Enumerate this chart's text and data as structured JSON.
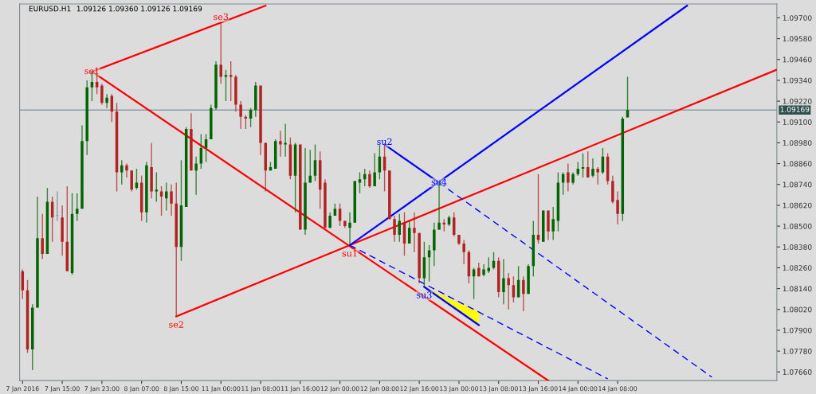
{
  "chart_data": {
    "type": "candlestick",
    "title": "EURUSD.H1",
    "subtitle": "1.09126 1.09360 1.09126 1.09169",
    "categories": [
      "7 Jan 2016",
      null,
      null,
      null,
      null,
      null,
      null,
      null,
      "7 Jan 15:00",
      null,
      null,
      null,
      null,
      null,
      null,
      null,
      "7 Jan 23:00",
      null,
      null,
      null,
      null,
      null,
      null,
      null,
      "8 Jan 07:00",
      null,
      null,
      null,
      null,
      null,
      null,
      null,
      "8 Jan 15:00",
      null,
      null,
      null,
      null,
      null,
      null,
      null,
      "11 Jan 00:00",
      null,
      null,
      null,
      null,
      null,
      null,
      null,
      "11 Jan 08:00",
      null,
      null,
      null,
      null,
      null,
      null,
      null,
      "11 Jan 16:00",
      null,
      null,
      null,
      null,
      null,
      null,
      null,
      "12 Jan 00:00",
      null,
      null,
      null,
      null,
      null,
      null,
      null,
      "12 Jan 08:00",
      null,
      null,
      null,
      null,
      null,
      null,
      null,
      "12 Jan 16:00",
      null,
      null,
      null,
      null,
      null,
      null,
      null,
      "13 Jan 00:00",
      null,
      null,
      null,
      null,
      null,
      null,
      null,
      "13 Jan 08:00",
      null,
      null,
      null,
      null,
      null,
      null,
      null,
      "13 Jan 16:00",
      null,
      null,
      null,
      null,
      null,
      null,
      null,
      "14 Jan 00:00",
      null,
      null,
      null,
      null,
      null,
      null,
      null,
      "14 Jan 08:00",
      null,
      null,
      null,
      null,
      null,
      null,
      null,
      null,
      null,
      null,
      null,
      null,
      null,
      null,
      null,
      null,
      null,
      null,
      null,
      null,
      null,
      null,
      null,
      null,
      null,
      null,
      null,
      null,
      null,
      null,
      null,
      null
    ],
    "ohlc": [
      [
        1.0824,
        1.0825,
        1.0808,
        1.0813
      ],
      [
        1.0813,
        1.0819,
        1.0777,
        1.0779
      ],
      [
        1.0779,
        1.0805,
        1.0767,
        1.0803
      ],
      [
        1.0803,
        1.0867,
        1.0803,
        1.0843
      ],
      [
        1.0843,
        1.0857,
        1.0831,
        1.0834
      ],
      [
        1.0834,
        1.0872,
        1.0834,
        1.0864
      ],
      [
        1.0864,
        1.0867,
        1.0841,
        1.0855
      ],
      [
        1.0856,
        1.087,
        1.0853,
        1.0856
      ],
      [
        1.0855,
        1.0862,
        1.0833,
        1.0841
      ],
      [
        1.0841,
        1.0873,
        1.0824,
        1.0824
      ],
      [
        1.0823,
        1.0869,
        1.0822,
        1.0857
      ],
      [
        1.0857,
        1.0869,
        1.0853,
        1.086
      ],
      [
        1.086,
        1.0908,
        1.086,
        1.0899
      ],
      [
        1.0899,
        1.0934,
        1.0891,
        1.093
      ],
      [
        1.093,
        1.0939,
        1.0922,
        1.0933
      ],
      [
        1.0933,
        1.0938,
        1.0926,
        1.093
      ],
      [
        1.0931,
        1.0932,
        1.092,
        1.0921
      ],
      [
        1.0921,
        1.0926,
        1.0918,
        1.0924
      ],
      [
        1.0925,
        1.0926,
        1.091,
        1.0916
      ],
      [
        1.0916,
        1.0921,
        1.087,
        1.0881
      ],
      [
        1.0881,
        1.0888,
        1.0874,
        1.0885
      ],
      [
        1.0885,
        1.0886,
        1.0878,
        1.0882
      ],
      [
        1.0882,
        1.0882,
        1.087,
        1.0871
      ],
      [
        1.0872,
        1.0883,
        1.0871,
        1.0875
      ],
      [
        1.0875,
        1.0879,
        1.0853,
        1.0858
      ],
      [
        1.0858,
        1.0887,
        1.0852,
        1.0885
      ],
      [
        1.0884,
        1.0898,
        1.0866,
        1.087
      ],
      [
        1.087,
        1.0881,
        1.0864,
        1.0871
      ],
      [
        1.087,
        1.0873,
        1.0856,
        1.0867
      ],
      [
        1.0866,
        1.0875,
        1.0859,
        1.087
      ],
      [
        1.087,
        1.0874,
        1.0856,
        1.0863
      ],
      [
        1.0863,
        1.0875,
        1.0798,
        1.0838
      ],
      [
        1.0838,
        1.0888,
        1.083,
        1.0862
      ],
      [
        1.0861,
        1.0907,
        1.0861,
        1.0906
      ],
      [
        1.0906,
        1.0915,
        1.0882,
        1.0882
      ],
      [
        1.0882,
        1.089,
        1.0868,
        1.0886
      ],
      [
        1.0886,
        1.0903,
        1.0883,
        1.0895
      ],
      [
        1.0895,
        1.0903,
        1.0887,
        1.09
      ],
      [
        1.09,
        1.092,
        1.09,
        1.0918
      ],
      [
        1.0918,
        1.0945,
        1.0917,
        1.0943
      ],
      [
        1.0943,
        1.0967,
        1.0932,
        1.0936
      ],
      [
        1.0936,
        1.094,
        1.0922,
        1.0937
      ],
      [
        1.0937,
        1.0945,
        1.0922,
        1.0936
      ],
      [
        1.0936,
        1.0937,
        1.0916,
        1.092
      ],
      [
        1.092,
        1.0922,
        1.0906,
        1.0913
      ],
      [
        1.0913,
        1.0914,
        1.0906,
        1.0912
      ],
      [
        1.0912,
        1.0918,
        1.0907,
        1.0917
      ],
      [
        1.0917,
        1.0933,
        1.0913,
        1.0931
      ],
      [
        1.0931,
        1.0931,
        1.0891,
        1.0898
      ],
      [
        1.0898,
        1.0898,
        1.087,
        1.0882
      ],
      [
        1.0882,
        1.0887,
        1.0882,
        1.0884
      ],
      [
        1.0883,
        1.09,
        1.0883,
        1.0899
      ],
      [
        1.0899,
        1.0905,
        1.089,
        1.0897
      ],
      [
        1.0897,
        1.0909,
        1.089,
        1.0898
      ],
      [
        1.0897,
        1.0901,
        1.0877,
        1.0879
      ],
      [
        1.0879,
        1.0898,
        1.0858,
        1.0897
      ],
      [
        1.0897,
        1.0897,
        1.0848,
        1.0848
      ],
      [
        1.0848,
        1.0895,
        1.0845,
        1.0875
      ],
      [
        1.0875,
        1.0894,
        1.0875,
        1.0879
      ],
      [
        1.0879,
        1.0897,
        1.0876,
        1.0888
      ],
      [
        1.0888,
        1.0893,
        1.086,
        1.0871
      ],
      [
        1.0875,
        1.0877,
        1.0849,
        1.0849
      ],
      [
        1.0849,
        1.0858,
        1.0849,
        1.0856
      ],
      [
        1.0856,
        1.0863,
        1.0856,
        1.086
      ],
      [
        1.086,
        1.0863,
        1.085,
        1.0853
      ],
      [
        1.0853,
        1.0853,
        1.0849,
        1.085
      ],
      [
        1.0849,
        1.0858,
        1.0839,
        1.0852
      ],
      [
        1.0852,
        1.0876,
        1.0852,
        1.0876
      ],
      [
        1.0875,
        1.0881,
        1.0869,
        1.0877
      ],
      [
        1.0877,
        1.0883,
        1.0873,
        1.088
      ],
      [
        1.088,
        1.0882,
        1.0872,
        1.0873
      ],
      [
        1.0873,
        1.0892,
        1.0873,
        1.0881
      ],
      [
        1.0881,
        1.0897,
        1.0877,
        1.089
      ],
      [
        1.089,
        1.0897,
        1.087,
        1.0882
      ],
      [
        1.0882,
        1.0882,
        1.0854,
        1.0854
      ],
      [
        1.0854,
        1.0856,
        1.0841,
        1.0845
      ],
      [
        1.0845,
        1.0857,
        1.0841,
        1.0853
      ],
      [
        1.0852,
        1.0858,
        1.0833,
        1.084
      ],
      [
        1.084,
        1.0853,
        1.084,
        1.0849
      ],
      [
        1.0849,
        1.0858,
        1.0835,
        1.0846
      ],
      [
        1.0846,
        1.0846,
        1.0817,
        1.082
      ],
      [
        1.082,
        1.0841,
        1.0815,
        1.0832
      ],
      [
        1.0832,
        1.0839,
        1.0818,
        1.0836
      ],
      [
        1.0836,
        1.0852,
        1.0827,
        1.0848
      ],
      [
        1.0848,
        1.0875,
        1.0848,
        1.0852
      ],
      [
        1.0852,
        1.0854,
        1.0847,
        1.0851
      ],
      [
        1.0851,
        1.0856,
        1.085,
        1.0855
      ],
      [
        1.0855,
        1.0858,
        1.0844,
        1.0845
      ],
      [
        1.0845,
        1.0845,
        1.0839,
        1.084
      ],
      [
        1.084,
        1.0842,
        1.0828,
        1.0835
      ],
      [
        1.0835,
        1.0836,
        1.0817,
        1.0821
      ],
      [
        1.0821,
        1.0826,
        1.0808,
        1.0825
      ],
      [
        1.0826,
        1.0829,
        1.0821,
        1.0821
      ],
      [
        1.0822,
        1.0828,
        1.0821,
        1.0825
      ],
      [
        1.0824,
        1.0832,
        1.0823,
        1.0826
      ],
      [
        1.0826,
        1.0835,
        1.0825,
        1.083
      ],
      [
        1.083,
        1.0832,
        1.0809,
        1.0812
      ],
      [
        1.0812,
        1.0831,
        1.0805,
        1.082
      ],
      [
        1.082,
        1.0823,
        1.0802,
        1.0816
      ],
      [
        1.0816,
        1.0821,
        1.0806,
        1.0809
      ],
      [
        1.0809,
        1.0827,
        1.0809,
        1.0819
      ],
      [
        1.0819,
        1.0821,
        1.0801,
        1.0811
      ],
      [
        1.0811,
        1.0828,
        1.0811,
        1.0827
      ],
      [
        1.0827,
        1.0853,
        1.0821,
        1.0845
      ],
      [
        1.0845,
        1.088,
        1.084,
        1.0842
      ],
      [
        1.0841,
        1.0859,
        1.0841,
        1.0859
      ],
      [
        1.0859,
        1.0859,
        1.0842,
        1.0847
      ],
      [
        1.0847,
        1.0861,
        1.0842,
        1.0854
      ],
      [
        1.0853,
        1.0881,
        1.0847,
        1.0875
      ],
      [
        1.0875,
        1.0881,
        1.0868,
        1.088
      ],
      [
        1.0881,
        1.0886,
        1.087,
        1.0875
      ],
      [
        1.0875,
        1.0881,
        1.0874,
        1.088
      ],
      [
        1.088,
        1.0887,
        1.0879,
        1.0883
      ],
      [
        1.0883,
        1.0892,
        1.0878,
        1.0884
      ],
      [
        1.0884,
        1.0893,
        1.0878,
        1.0878
      ],
      [
        1.0879,
        1.0889,
        1.0878,
        1.0883
      ],
      [
        1.0883,
        1.0884,
        1.0874,
        1.0881
      ],
      [
        1.0881,
        1.0895,
        1.088,
        1.089
      ],
      [
        1.089,
        1.0892,
        1.0874,
        1.0876
      ],
      [
        1.0876,
        1.0879,
        1.0863,
        1.0864
      ],
      [
        1.0865,
        1.087,
        1.0851,
        1.0857
      ],
      [
        1.0857,
        1.0913,
        1.0853,
        1.0912
      ],
      [
        1.09126,
        1.0936,
        1.09126,
        1.09169
      ],
      null,
      null,
      null,
      null,
      null,
      null,
      null,
      null,
      null,
      null,
      null,
      null,
      null,
      null,
      null,
      null,
      null,
      null,
      null,
      null,
      null,
      null,
      null,
      null,
      null,
      null,
      null,
      null,
      null,
      null
    ],
    "colors": [
      "#b22222",
      "#b22222",
      "#006400",
      "#006400",
      "#b22222",
      "#006400",
      "#b22222",
      "#708090",
      "#b22222",
      "#b22222",
      "#006400",
      "#006400",
      "#006400",
      "#006400",
      "#006400",
      "#b22222",
      "#b22222",
      "#006400",
      "#b22222",
      "#b22222",
      "#006400",
      "#b22222",
      "#b22222",
      "#006400",
      "#b22222",
      "#006400",
      "#b22222",
      "#006400",
      "#b22222",
      "#006400",
      "#b22222",
      "#b22222",
      "#006400",
      "#006400",
      "#b22222",
      "#006400",
      "#006400",
      "#006400",
      "#006400",
      "#006400",
      "#b22222",
      "#006400",
      "#b22222",
      "#b22222",
      "#b22222",
      "#b22222",
      "#006400",
      "#006400",
      "#b22222",
      "#b22222",
      "#006400",
      "#006400",
      "#b22222",
      "#006400",
      "#b22222",
      "#006400",
      "#b22222",
      "#006400",
      "#006400",
      "#006400",
      "#b22222",
      "#b22222",
      "#006400",
      "#006400",
      "#b22222",
      "#b22222",
      "#006400",
      "#006400",
      "#006400",
      "#006400",
      "#b22222",
      "#006400",
      "#006400",
      "#b22222",
      "#b22222",
      "#b22222",
      "#006400",
      "#b22222",
      "#006400",
      "#b22222",
      "#b22222",
      "#006400",
      "#006400",
      "#006400",
      "#006400",
      "#b22222",
      "#006400",
      "#b22222",
      "#b22222",
      "#b22222",
      "#b22222",
      "#006400",
      "#b22222",
      "#006400",
      "#006400",
      "#006400",
      "#b22222",
      "#006400",
      "#b22222",
      "#b22222",
      "#006400",
      "#b22222",
      "#006400",
      "#006400",
      "#b22222",
      "#006400",
      "#b22222",
      "#006400",
      "#006400",
      "#006400",
      "#b22222",
      "#006400",
      "#006400",
      "#006400",
      "#b22222",
      "#006400",
      "#b22222",
      "#006400",
      "#b22222",
      "#b22222",
      "#b22222",
      "#006400",
      "#006400",
      null,
      null,
      null,
      null,
      null,
      null,
      null,
      null,
      null,
      null,
      null,
      null,
      null,
      null,
      null,
      null,
      null,
      null,
      null,
      null,
      null,
      null,
      null,
      null,
      null,
      null,
      null,
      null,
      null,
      null
    ],
    "series": [
      {
        "type": "line",
        "color": "#ff0000",
        "line_style": "solid",
        "values": [
          null,
          null,
          null,
          null,
          null,
          null,
          null,
          null,
          null,
          null,
          null,
          null,
          null,
          null,
          1.0939,
          null,
          null,
          null,
          null,
          null,
          null,
          null,
          null,
          null,
          null,
          null,
          null,
          null,
          null,
          null,
          null,
          null,
          null,
          null,
          null,
          null,
          null,
          null,
          null,
          null,
          null,
          null,
          null,
          null,
          null,
          null,
          null,
          null,
          null,
          1.0977,
          null,
          null,
          null,
          null,
          null,
          null,
          null,
          null,
          null,
          null,
          null,
          null,
          null,
          null,
          null,
          null,
          null,
          null,
          null,
          null,
          null,
          null,
          null,
          null,
          null,
          null,
          null,
          null,
          null,
          null,
          null,
          null,
          null,
          null,
          null,
          null,
          null,
          null,
          null,
          null,
          null,
          null,
          null,
          null,
          null,
          null,
          null,
          null,
          null,
          null,
          null,
          null,
          null,
          null,
          null,
          null,
          null,
          null,
          null,
          null,
          null,
          null,
          null,
          null,
          null,
          null,
          null,
          null,
          null,
          null,
          null,
          null,
          null,
          null,
          null,
          null,
          null,
          null,
          null,
          null,
          null,
          null,
          null,
          null,
          null,
          null,
          null,
          null,
          null,
          null,
          null,
          null,
          null,
          null,
          null,
          null,
          null,
          null,
          null,
          null,
          null,
          null,
          null
        ]
      },
      {
        "type": "line",
        "color": "#ff0000",
        "line_style": "solid",
        "values": [
          null,
          null,
          null,
          null,
          null,
          null,
          null,
          null,
          null,
          null,
          null,
          null,
          null,
          null,
          1.0939,
          null,
          null,
          null,
          null,
          null,
          null,
          null,
          null,
          null,
          null,
          null,
          null,
          null,
          null,
          null,
          null,
          null,
          null,
          null,
          null,
          null,
          null,
          null,
          null,
          null,
          null,
          null,
          null,
          null,
          null,
          null,
          null,
          null,
          null,
          null,
          null,
          null,
          null,
          null,
          null,
          null,
          null,
          null,
          null,
          null,
          null,
          null,
          null,
          null,
          null,
          null,
          null,
          null,
          null,
          null,
          null,
          null,
          null,
          null,
          null,
          null,
          null,
          null,
          null,
          null,
          null,
          null,
          null,
          null,
          null,
          null,
          null,
          null,
          null,
          null,
          null,
          null,
          null,
          null,
          null,
          null,
          null,
          null,
          null,
          null,
          null,
          null,
          null,
          null,
          null,
          null,
          1.0761,
          null,
          null,
          null,
          null,
          null,
          null,
          null,
          null,
          null,
          null,
          null,
          null,
          null,
          null,
          null,
          null,
          null,
          null,
          null,
          null,
          null,
          null,
          null,
          null,
          null,
          null,
          null,
          null,
          null,
          null,
          null,
          null,
          null,
          null,
          null,
          null,
          null,
          null,
          null,
          null,
          null,
          null,
          null,
          null,
          null,
          null
        ]
      },
      {
        "type": "line",
        "color": "#ff0000",
        "line_style": "solid",
        "values": [
          null,
          null,
          null,
          null,
          null,
          null,
          null,
          null,
          null,
          null,
          null,
          null,
          null,
          null,
          null,
          null,
          null,
          null,
          null,
          null,
          null,
          null,
          null,
          null,
          null,
          null,
          null,
          null,
          null,
          null,
          null,
          1.0798,
          null,
          null,
          null,
          null,
          null,
          null,
          null,
          null,
          null,
          null,
          null,
          null,
          null,
          null,
          null,
          null,
          null,
          null,
          null,
          null,
          null,
          null,
          null,
          null,
          null,
          null,
          null,
          null,
          null,
          null,
          null,
          null,
          null,
          null,
          1.0839,
          null,
          null,
          null,
          null,
          null,
          null,
          null,
          null,
          null,
          null,
          null,
          null,
          null,
          null,
          null,
          null,
          null,
          null,
          null,
          null,
          null,
          null,
          null,
          null,
          null,
          null,
          null,
          null,
          null,
          null,
          null,
          null,
          null,
          null,
          null,
          null,
          null,
          null,
          null,
          null,
          null,
          null,
          null,
          null,
          null,
          null,
          null,
          null,
          null,
          null,
          null,
          null,
          null,
          null,
          null,
          null,
          null,
          null,
          null,
          null,
          null,
          null,
          null,
          null,
          null,
          null,
          null,
          null,
          null,
          null,
          null,
          null,
          null,
          null,
          null,
          null,
          null,
          null,
          null,
          null,
          null,
          null,
          null,
          null,
          null,
          1.094
        ]
      },
      {
        "type": "line",
        "color": "#0000ff",
        "line_style": "solid",
        "values": [
          null,
          null,
          null,
          null,
          null,
          null,
          null,
          null,
          null,
          null,
          null,
          null,
          null,
          null,
          null,
          null,
          null,
          null,
          null,
          null,
          null,
          null,
          null,
          null,
          null,
          null,
          null,
          null,
          null,
          null,
          null,
          null,
          null,
          null,
          null,
          null,
          null,
          null,
          null,
          null,
          null,
          null,
          null,
          null,
          null,
          null,
          null,
          null,
          null,
          null,
          null,
          null,
          null,
          null,
          null,
          null,
          null,
          null,
          null,
          null,
          null,
          null,
          null,
          null,
          null,
          null,
          1.0839,
          null,
          null,
          null,
          null,
          null,
          null,
          null,
          null,
          null,
          null,
          null,
          null,
          null,
          null,
          null,
          null,
          null,
          null,
          null,
          null,
          null,
          null,
          null,
          null,
          null,
          null,
          null,
          null,
          null,
          null,
          null,
          null,
          null,
          null,
          null,
          null,
          null,
          null,
          null,
          null,
          null,
          null,
          null,
          null,
          null,
          null,
          null,
          null,
          null,
          null,
          null,
          null,
          null,
          null,
          null,
          null,
          null,
          null,
          null,
          null,
          null,
          null,
          null,
          null,
          null,
          null,
          null,
          1.0977,
          null,
          null,
          null,
          null,
          null,
          null,
          null,
          null,
          null,
          null,
          null,
          null,
          null,
          null,
          null,
          null,
          null,
          null
        ]
      },
      {
        "type": "line",
        "color": "#0000ff",
        "line_style": "solid",
        "values": [
          null,
          null,
          null,
          null,
          null,
          null,
          null,
          null,
          null,
          null,
          null,
          null,
          null,
          null,
          null,
          null,
          null,
          null,
          null,
          null,
          null,
          null,
          null,
          null,
          null,
          null,
          null,
          null,
          null,
          null,
          null,
          null,
          null,
          null,
          null,
          null,
          null,
          null,
          null,
          null,
          null,
          null,
          null,
          null,
          null,
          null,
          null,
          null,
          null,
          null,
          null,
          null,
          null,
          null,
          null,
          null,
          null,
          null,
          null,
          null,
          null,
          null,
          null,
          null,
          null,
          null,
          null,
          null,
          null,
          null,
          null,
          null,
          null,
          1.0897,
          null,
          null,
          null,
          null,
          null,
          null,
          null,
          null,
          null,
          null,
          1.0875,
          null,
          null,
          null,
          null,
          null,
          null,
          null,
          null,
          null,
          null,
          null,
          null,
          null,
          null,
          null,
          null,
          null,
          null,
          null,
          null,
          null,
          null,
          null,
          null,
          null,
          null,
          null,
          null,
          null,
          null,
          null,
          null,
          null,
          null,
          null,
          null,
          null,
          null,
          null,
          null,
          null,
          null,
          null,
          null,
          null,
          null,
          null,
          null,
          null,
          null,
          null,
          null,
          null,
          null,
          null,
          null,
          null,
          null,
          null,
          null,
          null,
          null,
          null,
          null,
          null,
          null,
          null,
          null
        ]
      },
      {
        "type": "line",
        "color": "#0000ff",
        "line_style": "dashed",
        "values": [
          null,
          null,
          null,
          null,
          null,
          null,
          null,
          null,
          null,
          null,
          null,
          null,
          null,
          null,
          null,
          null,
          null,
          null,
          null,
          null,
          null,
          null,
          null,
          null,
          null,
          null,
          null,
          null,
          null,
          null,
          null,
          null,
          null,
          null,
          null,
          null,
          null,
          null,
          null,
          null,
          null,
          null,
          null,
          null,
          null,
          null,
          null,
          null,
          null,
          null,
          null,
          null,
          null,
          null,
          null,
          null,
          null,
          null,
          null,
          null,
          null,
          null,
          null,
          null,
          null,
          null,
          null,
          null,
          null,
          null,
          null,
          null,
          null,
          null,
          null,
          null,
          null,
          null,
          null,
          null,
          null,
          null,
          null,
          null,
          1.0875,
          null,
          null,
          null,
          null,
          null,
          null,
          null,
          null,
          null,
          null,
          null,
          null,
          null,
          null,
          null,
          null,
          null,
          null,
          null,
          null,
          null,
          null,
          null,
          null,
          null,
          null,
          null,
          null,
          null,
          null,
          null,
          null,
          null,
          null,
          null,
          null,
          null,
          null,
          null,
          null,
          null,
          null,
          null,
          null,
          null,
          null,
          null,
          null,
          null,
          null,
          null,
          null,
          null,
          null,
          1.0763,
          null,
          null,
          null,
          null,
          null,
          null,
          null,
          null,
          null,
          null,
          null,
          null,
          null
        ]
      },
      {
        "type": "line",
        "color": "#0000ff",
        "line_style": "dashed",
        "values": [
          null,
          null,
          null,
          null,
          null,
          null,
          null,
          null,
          null,
          null,
          null,
          null,
          null,
          null,
          null,
          null,
          null,
          null,
          null,
          null,
          null,
          null,
          null,
          null,
          null,
          null,
          null,
          null,
          null,
          null,
          null,
          null,
          null,
          null,
          null,
          null,
          null,
          null,
          null,
          null,
          null,
          null,
          null,
          null,
          null,
          null,
          null,
          null,
          null,
          null,
          null,
          null,
          null,
          null,
          null,
          null,
          null,
          null,
          null,
          null,
          null,
          null,
          null,
          null,
          null,
          null,
          1.0839,
          null,
          null,
          null,
          null,
          null,
          null,
          null,
          null,
          null,
          null,
          null,
          null,
          null,
          null,
          null,
          null,
          null,
          null,
          null,
          null,
          null,
          null,
          null,
          null,
          null,
          null,
          null,
          null,
          null,
          null,
          null,
          null,
          null,
          null,
          null,
          null,
          null,
          null,
          null,
          null,
          null,
          null,
          null,
          null,
          null,
          null,
          null,
          null,
          null,
          null,
          null,
          1.0762,
          null,
          null,
          null,
          null,
          null,
          null,
          null,
          null,
          null,
          null,
          null,
          null,
          null,
          null,
          null,
          null,
          null,
          null,
          null,
          null,
          null,
          null,
          null,
          null,
          null,
          null,
          null,
          null,
          null,
          null,
          null,
          null,
          null,
          null
        ]
      },
      {
        "type": "line",
        "color": "#0000ff",
        "line_style": "solid",
        "values": [
          null,
          null,
          null,
          null,
          null,
          null,
          null,
          null,
          null,
          null,
          null,
          null,
          null,
          null,
          null,
          null,
          null,
          null,
          null,
          null,
          null,
          null,
          null,
          null,
          null,
          null,
          null,
          null,
          null,
          null,
          null,
          null,
          null,
          null,
          null,
          null,
          null,
          null,
          null,
          null,
          null,
          null,
          null,
          null,
          null,
          null,
          null,
          null,
          null,
          null,
          null,
          null,
          null,
          null,
          null,
          null,
          null,
          null,
          null,
          null,
          null,
          null,
          null,
          null,
          null,
          null,
          null,
          null,
          null,
          null,
          null,
          null,
          null,
          null,
          null,
          null,
          null,
          null,
          null,
          null,
          null,
          1.0815,
          null,
          null,
          null,
          null,
          null,
          null,
          null,
          null,
          null,
          null,
          1.0793,
          null,
          null,
          null,
          null,
          null,
          null,
          null,
          null,
          null,
          null,
          null,
          null,
          null,
          null,
          null,
          null,
          null,
          null,
          null,
          null,
          null,
          null,
          null,
          null,
          null,
          null,
          null,
          null,
          null,
          null,
          null,
          null,
          null,
          null,
          null,
          null,
          null,
          null,
          null,
          null,
          null,
          null,
          null,
          null,
          null,
          null,
          null,
          null,
          null,
          null,
          null,
          null,
          null,
          null,
          null,
          null,
          null,
          null,
          null,
          null
        ]
      }
    ],
    "ref_lines": [
      {
        "axis": "y",
        "value": 1.09169,
        "label": "1.09169",
        "color": "#8c9aa6"
      }
    ],
    "annotations": [
      {
        "text": "se1",
        "y": 1.0939
      },
      {
        "text": "se2",
        "y": 1.0798
      },
      {
        "text": "se3",
        "y": 1.0967
      },
      {
        "text": "su1",
        "y": 1.0839
      },
      {
        "text": "su2",
        "y": 1.0897
      },
      {
        "text": "su3",
        "y": 1.0815
      },
      {
        "text": "su4",
        "y": 1.0875
      }
    ],
    "ylim": [
      1.0761,
      1.0978
    ],
    "yticks": [
      {
        "value": 1.0766,
        "label": "1.07660"
      },
      {
        "value": 1.0778,
        "label": "1.07780"
      },
      {
        "value": 1.079,
        "label": "1.07900"
      },
      {
        "value": 1.0802,
        "label": "1.08020"
      },
      {
        "value": 1.0814,
        "label": "1.08140"
      },
      {
        "value": 1.0826,
        "label": "1.08260"
      },
      {
        "value": 1.0838,
        "label": "1.08380"
      },
      {
        "value": 1.085,
        "label": "1.08500"
      },
      {
        "value": 1.0862,
        "label": "1.08620"
      },
      {
        "value": 1.0874,
        "label": "1.08740"
      },
      {
        "value": 1.0886,
        "label": "1.08860"
      },
      {
        "value": 1.0898,
        "label": "1.08980"
      },
      {
        "value": 1.091,
        "label": "1.09100"
      },
      {
        "value": 1.0922,
        "label": "1.09220"
      },
      {
        "value": 1.0934,
        "label": "1.09340"
      },
      {
        "value": 1.0946,
        "label": "1.09460"
      },
      {
        "value": 1.0958,
        "label": "1.09580"
      },
      {
        "value": 1.097,
        "label": "1.09700"
      }
    ],
    "grid": false
  }
}
